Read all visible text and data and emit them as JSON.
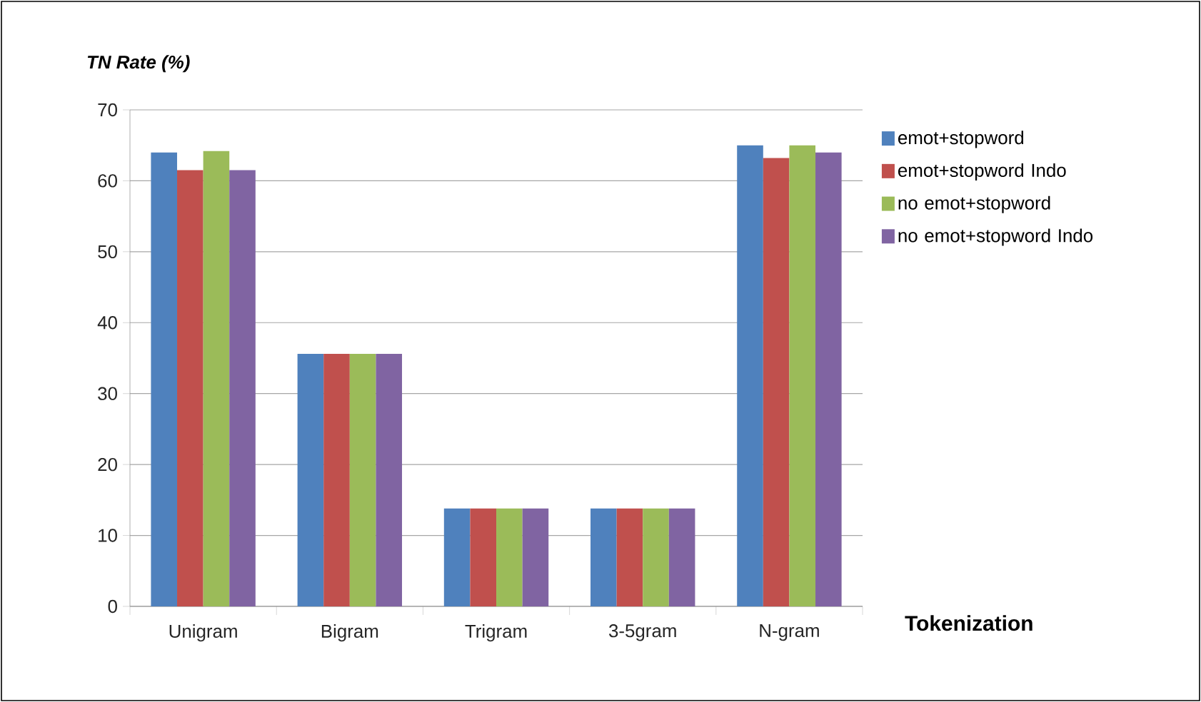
{
  "chart_data": {
    "type": "bar",
    "xlabel": "Tokenization",
    "ylabel": "TN Rate (%)",
    "categories": [
      "Unigram",
      "Bigram",
      "Trigram",
      "3-5gram",
      "N-gram"
    ],
    "series": [
      {
        "name": "emot+stopword",
        "color": "#4f81bd",
        "values": [
          64,
          35.6,
          13.8,
          13.8,
          65
        ]
      },
      {
        "name": "emot+stopword Indo",
        "color": "#c0504d",
        "values": [
          61.5,
          35.6,
          13.8,
          13.8,
          63.2
        ]
      },
      {
        "name": "no emot+stopword",
        "color": "#9bbb59",
        "values": [
          64.2,
          35.6,
          13.8,
          13.8,
          65
        ]
      },
      {
        "name": "no emot+stopword Indo",
        "color": "#8064a2",
        "values": [
          61.5,
          35.6,
          13.8,
          13.8,
          64
        ]
      }
    ],
    "ylim": [
      0,
      70
    ],
    "yticks": [
      0,
      10,
      20,
      30,
      40,
      50,
      60,
      70
    ],
    "grid": "y",
    "legend": "right"
  }
}
